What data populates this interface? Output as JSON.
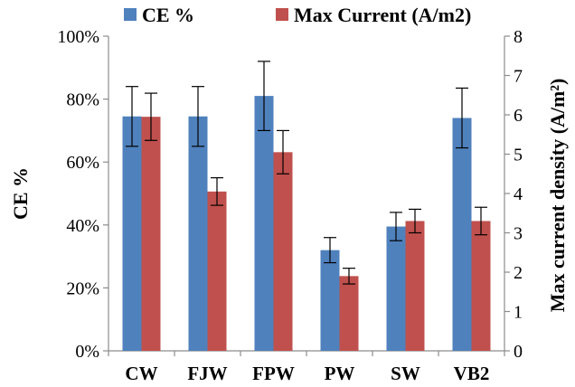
{
  "chart_data": {
    "type": "bar",
    "categories": [
      "CW",
      "FJW",
      "FPW",
      "PW",
      "SW",
      "VB2"
    ],
    "series": [
      {
        "name": "CE %",
        "axis": "left",
        "color": "#4f81bd",
        "values": [
          74.5,
          74.5,
          81.0,
          32.0,
          39.5,
          74.0
        ],
        "errors": [
          9.5,
          9.5,
          11.0,
          4.0,
          4.5,
          9.5
        ]
      },
      {
        "name": "Max Current (A/m2)",
        "axis": "right",
        "color": "#c0504d",
        "values": [
          5.95,
          4.05,
          5.05,
          1.9,
          3.3,
          3.3
        ],
        "errors": [
          0.6,
          0.35,
          0.55,
          0.2,
          0.3,
          0.35
        ]
      }
    ],
    "ylabel": "CE %",
    "ylabel_right": "Max current density (A/m²)",
    "ylim": [
      0,
      100
    ],
    "ylim_right": [
      0,
      8
    ],
    "yticks": [
      "0%",
      "20%",
      "40%",
      "60%",
      "80%",
      "100%"
    ],
    "yticks_right": [
      "0",
      "1",
      "2",
      "3",
      "4",
      "5",
      "6",
      "7",
      "8"
    ],
    "legend": [
      {
        "label": "CE %",
        "color": "#4f81bd"
      },
      {
        "label": "Max Current (A/m2)",
        "color": "#c0504d"
      }
    ],
    "legend_position": "top",
    "grid": false
  }
}
